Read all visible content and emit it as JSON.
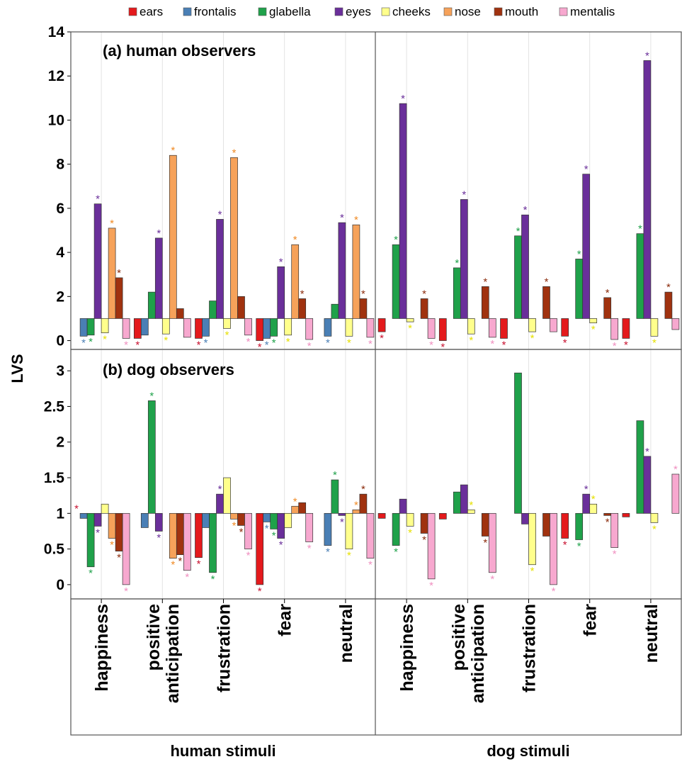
{
  "legend": {
    "placement": "top",
    "items": [
      {
        "label": "ears",
        "color": "#e41a1c"
      },
      {
        "label": "frontalis",
        "color": "#4a7fb5"
      },
      {
        "label": "glabella",
        "color": "#1fa14a"
      },
      {
        "label": "eyes",
        "color": "#6a2f9a"
      },
      {
        "label": "cheeks",
        "color": "#ffff8c"
      },
      {
        "label": "nose",
        "color": "#f6a25a"
      },
      {
        "label": "mouth",
        "color": "#a0320f"
      },
      {
        "label": "mentalis",
        "color": "#f7a8cf"
      }
    ]
  },
  "y_label": "LVS",
  "x_groups": [
    {
      "label": "human stimuli",
      "categories": [
        "happiness",
        "positive\nanticipation",
        "frustration",
        "fear",
        "neutral"
      ]
    },
    {
      "label": "dog stimuli",
      "categories": [
        "happiness",
        "positive\nanticipation",
        "frustration",
        "fear",
        "neutral"
      ]
    }
  ],
  "chart_data": [
    {
      "type": "bar",
      "title": "(a) human observers",
      "ylabel": "LVS",
      "ylim": [
        -0.4,
        14
      ],
      "yticks": [
        0,
        2,
        4,
        6,
        8,
        10,
        12,
        14
      ],
      "baseline": 1,
      "star_symbol": "*",
      "categories": [
        "human stimuli: happiness",
        "human stimuli: positive anticipation",
        "human stimuli: frustration",
        "human stimuli: fear",
        "human stimuli: neutral",
        "dog stimuli: happiness",
        "dog stimuli: positive anticipation",
        "dog stimuli: frustration",
        "dog stimuli: fear",
        "dog stimuli: neutral"
      ],
      "series": [
        {
          "name": "ears",
          "values": [
            1.0,
            0.1,
            0.1,
            0.0,
            1.0,
            0.4,
            0.0,
            0.1,
            0.2,
            0.1
          ],
          "stars": [
            false,
            true,
            true,
            true,
            false,
            true,
            true,
            true,
            true,
            true
          ]
        },
        {
          "name": "frontalis",
          "values": [
            0.2,
            0.25,
            0.2,
            0.1,
            0.2,
            1.0,
            1.0,
            1.0,
            1.0,
            1.0
          ],
          "stars": [
            true,
            false,
            true,
            true,
            true,
            false,
            false,
            false,
            false,
            false
          ]
        },
        {
          "name": "glabella",
          "values": [
            0.25,
            2.2,
            1.8,
            0.2,
            1.65,
            4.35,
            3.3,
            4.75,
            3.7,
            4.85
          ],
          "stars": [
            true,
            false,
            false,
            true,
            false,
            true,
            true,
            true,
            true,
            true
          ]
        },
        {
          "name": "eyes",
          "values": [
            6.2,
            4.65,
            5.5,
            3.35,
            5.35,
            10.75,
            6.4,
            5.7,
            7.55,
            12.7
          ],
          "stars": [
            true,
            true,
            true,
            true,
            true,
            true,
            true,
            true,
            true,
            true
          ]
        },
        {
          "name": "cheeks",
          "values": [
            0.35,
            0.3,
            0.55,
            0.25,
            0.2,
            0.85,
            0.3,
            0.4,
            0.8,
            0.2
          ],
          "stars": [
            true,
            true,
            true,
            true,
            true,
            true,
            true,
            true,
            true,
            true
          ]
        },
        {
          "name": "nose",
          "values": [
            5.1,
            8.4,
            8.3,
            4.35,
            5.25,
            1.0,
            1.0,
            1.0,
            1.0,
            1.0
          ],
          "stars": [
            true,
            true,
            true,
            true,
            true,
            false,
            false,
            false,
            false,
            false
          ]
        },
        {
          "name": "mouth",
          "values": [
            2.85,
            1.45,
            2.0,
            1.9,
            1.9,
            1.9,
            2.45,
            2.45,
            1.95,
            2.2
          ],
          "stars": [
            true,
            false,
            false,
            true,
            true,
            true,
            true,
            true,
            true,
            true
          ]
        },
        {
          "name": "mentalis",
          "values": [
            0.1,
            0.15,
            0.25,
            0.05,
            0.15,
            0.1,
            0.15,
            0.4,
            0.05,
            0.5
          ],
          "stars": [
            true,
            false,
            true,
            true,
            true,
            true,
            true,
            false,
            true,
            false
          ]
        }
      ]
    },
    {
      "type": "bar",
      "title": "(b) dog observers",
      "ylabel": "LVS",
      "ylim": [
        -0.2,
        3.3
      ],
      "yticks": [
        0,
        0.5,
        1,
        1.5,
        2,
        2.5,
        3
      ],
      "baseline": 1,
      "star_symbol": "*",
      "categories": [
        "human stimuli: happiness",
        "human stimuli: positive anticipation",
        "human stimuli: frustration",
        "human stimuli: fear",
        "human stimuli: neutral",
        "dog stimuli: happiness",
        "dog stimuli: positive anticipation",
        "dog stimuli: frustration",
        "dog stimuli: fear",
        "dog stimuli: neutral"
      ],
      "series": [
        {
          "name": "ears",
          "values": [
            1.0,
            1.0,
            0.38,
            0.0,
            1.0,
            0.93,
            0.92,
            1.0,
            0.65,
            0.95
          ],
          "stars": [
            true,
            false,
            true,
            true,
            false,
            false,
            false,
            false,
            true,
            false
          ]
        },
        {
          "name": "frontalis",
          "values": [
            0.93,
            0.8,
            0.8,
            0.88,
            0.55,
            1.0,
            1.0,
            1.0,
            1.0,
            1.0
          ],
          "stars": [
            false,
            false,
            false,
            true,
            true,
            false,
            false,
            false,
            false,
            false
          ]
        },
        {
          "name": "glabella",
          "values": [
            0.25,
            2.58,
            0.17,
            0.78,
            1.47,
            0.55,
            1.3,
            2.97,
            0.63,
            2.3
          ],
          "stars": [
            true,
            true,
            true,
            true,
            true,
            true,
            false,
            false,
            true,
            false
          ]
        },
        {
          "name": "eyes",
          "values": [
            0.82,
            0.75,
            1.27,
            0.65,
            0.97,
            1.2,
            1.4,
            0.85,
            1.27,
            1.8
          ],
          "stars": [
            true,
            true,
            true,
            true,
            true,
            false,
            false,
            false,
            true,
            true
          ]
        },
        {
          "name": "cheeks",
          "values": [
            1.13,
            1.0,
            1.5,
            0.8,
            0.5,
            0.82,
            1.05,
            0.28,
            1.13,
            0.87
          ],
          "stars": [
            false,
            false,
            false,
            false,
            true,
            true,
            true,
            true,
            true,
            true
          ]
        },
        {
          "name": "nose",
          "values": [
            0.65,
            0.37,
            0.92,
            1.1,
            1.05,
            1.0,
            1.0,
            1.0,
            1.0,
            1.0
          ],
          "stars": [
            true,
            true,
            true,
            true,
            true,
            false,
            false,
            false,
            false,
            false
          ]
        },
        {
          "name": "mouth",
          "values": [
            0.47,
            0.42,
            0.83,
            1.15,
            1.27,
            0.72,
            0.68,
            0.68,
            0.97,
            1.0
          ],
          "stars": [
            true,
            true,
            true,
            false,
            true,
            true,
            true,
            false,
            true,
            false
          ]
        },
        {
          "name": "mentalis",
          "values": [
            0.0,
            0.2,
            0.5,
            0.6,
            0.37,
            0.08,
            0.17,
            0.0,
            0.52,
            1.55
          ],
          "stars": [
            true,
            true,
            true,
            true,
            true,
            true,
            true,
            true,
            true,
            true
          ]
        }
      ]
    }
  ]
}
